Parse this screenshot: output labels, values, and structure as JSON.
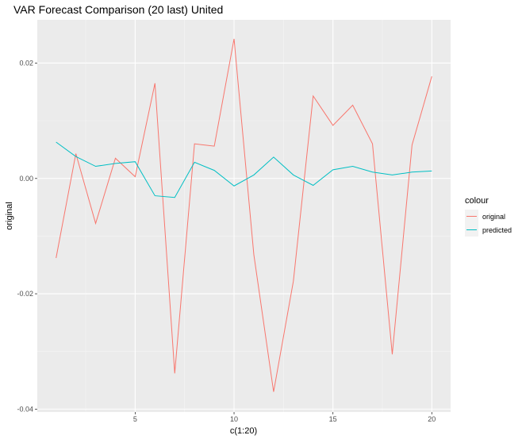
{
  "chart_data": {
    "type": "line",
    "title": "VAR Forecast Comparison (20 last) United",
    "xlabel": "c(1:20)",
    "ylabel": "original",
    "x": [
      1,
      2,
      3,
      4,
      5,
      6,
      7,
      8,
      9,
      10,
      11,
      12,
      13,
      14,
      15,
      16,
      17,
      18,
      19,
      20
    ],
    "xlim": [
      0.05,
      20.95
    ],
    "ylim": [
      -0.0405,
      0.0275
    ],
    "xticks": [
      5,
      10,
      15,
      20
    ],
    "xtick_labels": [
      "5",
      "10",
      "15",
      "20"
    ],
    "yticks": [
      -0.04,
      -0.02,
      0.0,
      0.02
    ],
    "ytick_labels": [
      "-0.04",
      "-0.02",
      "0.00",
      "0.02"
    ],
    "grid": true,
    "legend": {
      "title": "colour",
      "position": "right"
    },
    "series": [
      {
        "name": "original",
        "color": "#F8766D",
        "values": [
          -0.0138,
          0.0043,
          -0.0078,
          0.0035,
          0.0003,
          0.0165,
          -0.0338,
          0.006,
          0.0056,
          0.0242,
          -0.0132,
          -0.037,
          -0.0178,
          0.0143,
          0.0092,
          0.0127,
          0.006,
          -0.0305,
          0.0058,
          0.0177
        ]
      },
      {
        "name": "predicted",
        "color": "#00BFC4",
        "values": [
          0.0063,
          0.0038,
          0.0021,
          0.0026,
          0.0029,
          -0.003,
          -0.0033,
          0.0028,
          0.0014,
          -0.0013,
          0.0006,
          0.0037,
          0.0006,
          -0.0012,
          0.0015,
          0.0021,
          0.0011,
          0.0006,
          0.0011,
          0.0013
        ]
      }
    ]
  }
}
